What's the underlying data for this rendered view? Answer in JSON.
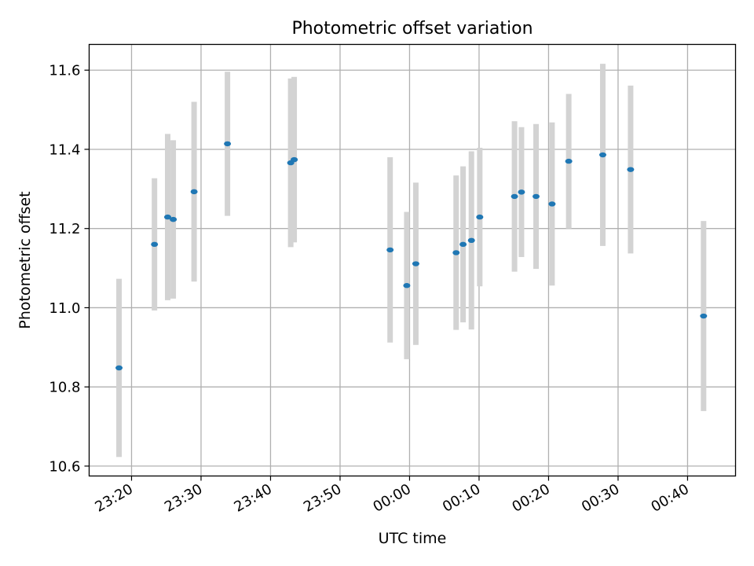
{
  "chart_data": {
    "type": "scatter",
    "title": "Photometric offset variation",
    "xlabel": "UTC time",
    "ylabel": "Photometric offset",
    "x_tick_labels": [
      "23:20",
      "23:30",
      "23:40",
      "23:50",
      "00:00",
      "00:10",
      "00:20",
      "00:30",
      "00:40"
    ],
    "x_tick_minutes": [
      0,
      10,
      20,
      30,
      40,
      50,
      60,
      70,
      80
    ],
    "y_ticks": [
      10.6,
      10.8,
      11.0,
      11.2,
      11.4,
      11.6
    ],
    "y_tick_labels": [
      "10.6",
      "10.8",
      "11.0",
      "11.2",
      "11.4",
      "11.6"
    ],
    "xlim_minutes": [
      -6.1,
      86.9
    ],
    "ylim": [
      10.575,
      11.665
    ],
    "grid": true,
    "marker_color": "#1f77b4",
    "errorbar_color": "#d3d3d3",
    "points": [
      {
        "time": "23:18:12",
        "minutes": -1.8,
        "value": 10.848,
        "err": 0.225
      },
      {
        "time": "23:23:18",
        "minutes": 3.3,
        "value": 11.16,
        "err": 0.167
      },
      {
        "time": "23:25:12",
        "minutes": 5.2,
        "value": 11.229,
        "err": 0.21
      },
      {
        "time": "23:26:00",
        "minutes": 6.0,
        "value": 11.223,
        "err": 0.2
      },
      {
        "time": "23:29:00",
        "minutes": 9.0,
        "value": 11.293,
        "err": 0.227
      },
      {
        "time": "23:33:48",
        "minutes": 13.8,
        "value": 11.414,
        "err": 0.182
      },
      {
        "time": "23:42:54",
        "minutes": 22.9,
        "value": 11.366,
        "err": 0.213
      },
      {
        "time": "23:43:24",
        "minutes": 23.4,
        "value": 11.374,
        "err": 0.209
      },
      {
        "time": "23:57:12",
        "minutes": 37.2,
        "value": 11.146,
        "err": 0.234
      },
      {
        "time": "23:59:36",
        "minutes": 39.6,
        "value": 11.056,
        "err": 0.186
      },
      {
        "time": "00:00:54",
        "minutes": 40.9,
        "value": 11.111,
        "err": 0.205
      },
      {
        "time": "00:06:42",
        "minutes": 46.7,
        "value": 11.139,
        "err": 0.195
      },
      {
        "time": "00:07:42",
        "minutes": 47.7,
        "value": 11.16,
        "err": 0.197
      },
      {
        "time": "00:08:54",
        "minutes": 48.9,
        "value": 11.17,
        "err": 0.225
      },
      {
        "time": "00:10:06",
        "minutes": 50.1,
        "value": 11.229,
        "err": 0.175
      },
      {
        "time": "00:15:06",
        "minutes": 55.1,
        "value": 11.281,
        "err": 0.19
      },
      {
        "time": "00:16:06",
        "minutes": 56.1,
        "value": 11.292,
        "err": 0.164
      },
      {
        "time": "00:18:12",
        "minutes": 58.2,
        "value": 11.281,
        "err": 0.183
      },
      {
        "time": "00:20:30",
        "minutes": 60.5,
        "value": 11.262,
        "err": 0.206
      },
      {
        "time": "00:22:54",
        "minutes": 62.9,
        "value": 11.37,
        "err": 0.17
      },
      {
        "time": "00:27:48",
        "minutes": 67.8,
        "value": 11.386,
        "err": 0.23
      },
      {
        "time": "00:31:48",
        "minutes": 71.8,
        "value": 11.349,
        "err": 0.212
      },
      {
        "time": "00:42:18",
        "minutes": 82.3,
        "value": 10.979,
        "err": 0.24
      }
    ]
  }
}
